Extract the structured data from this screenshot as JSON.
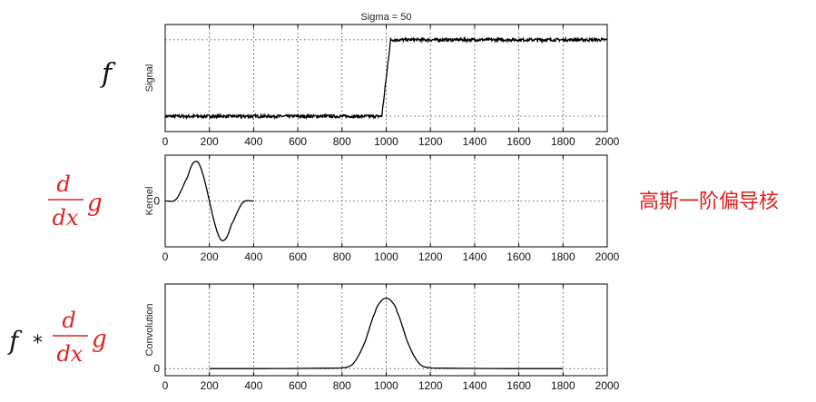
{
  "labels": {
    "signal_expr": "f",
    "kernel_num": "d",
    "kernel_den": "dx",
    "kernel_g": "g",
    "conv_f": "f",
    "conv_op": "*",
    "conv_num": "d",
    "conv_den": "dx",
    "conv_g": "g",
    "side_note": "高斯一阶偏导核"
  },
  "colors": {
    "math_black": "#111111",
    "math_red": "#e0201c",
    "curve": "#000000"
  },
  "chart_data": [
    {
      "type": "line",
      "title": "Sigma = 50",
      "ylabel": "Signal",
      "xlim": [
        0,
        2000
      ],
      "ylim": [
        -0.2,
        1.2
      ],
      "xticks": [
        "0",
        "200",
        "400",
        "600",
        "800",
        "1000",
        "1200",
        "1400",
        "1600",
        "1800",
        "2000"
      ],
      "yticks": [],
      "y_gridlines": [
        0,
        1
      ],
      "grid": true,
      "noise_amplitude": 0.02,
      "x": [
        0,
        980,
        1020,
        2000
      ],
      "y": [
        0,
        0,
        1,
        1
      ]
    },
    {
      "type": "line",
      "title": "",
      "ylabel": "Kernel",
      "xlim": [
        0,
        2000
      ],
      "ylim": [
        -1.2,
        1.2
      ],
      "xticks": [
        "0",
        "200",
        "400",
        "600",
        "800",
        "1000",
        "1200",
        "1400",
        "1600",
        "1800",
        "2000"
      ],
      "yticks": [
        "0"
      ],
      "grid": true,
      "x": [
        0,
        50,
        100,
        125,
        150,
        175,
        200,
        225,
        250,
        275,
        300,
        350,
        400
      ],
      "y": [
        0,
        0.05,
        0.61,
        0.98,
        1.0,
        0.61,
        0,
        -0.61,
        -1.0,
        -0.98,
        -0.61,
        -0.05,
        0
      ]
    },
    {
      "type": "line",
      "title": "",
      "ylabel": "Convolution",
      "xlim": [
        0,
        2000
      ],
      "ylim": [
        -0.1,
        1.2
      ],
      "xticks": [
        "0",
        "200",
        "400",
        "600",
        "800",
        "1000",
        "1200",
        "1400",
        "1600",
        "1800",
        "2000"
      ],
      "yticks": [
        "0"
      ],
      "grid": true,
      "x": [
        200,
        800,
        850,
        900,
        950,
        975,
        1000,
        1025,
        1050,
        1100,
        1150,
        1200,
        1800
      ],
      "y": [
        0,
        0.01,
        0.07,
        0.35,
        0.8,
        0.95,
        1.0,
        0.95,
        0.8,
        0.35,
        0.07,
        0.01,
        0
      ]
    }
  ]
}
